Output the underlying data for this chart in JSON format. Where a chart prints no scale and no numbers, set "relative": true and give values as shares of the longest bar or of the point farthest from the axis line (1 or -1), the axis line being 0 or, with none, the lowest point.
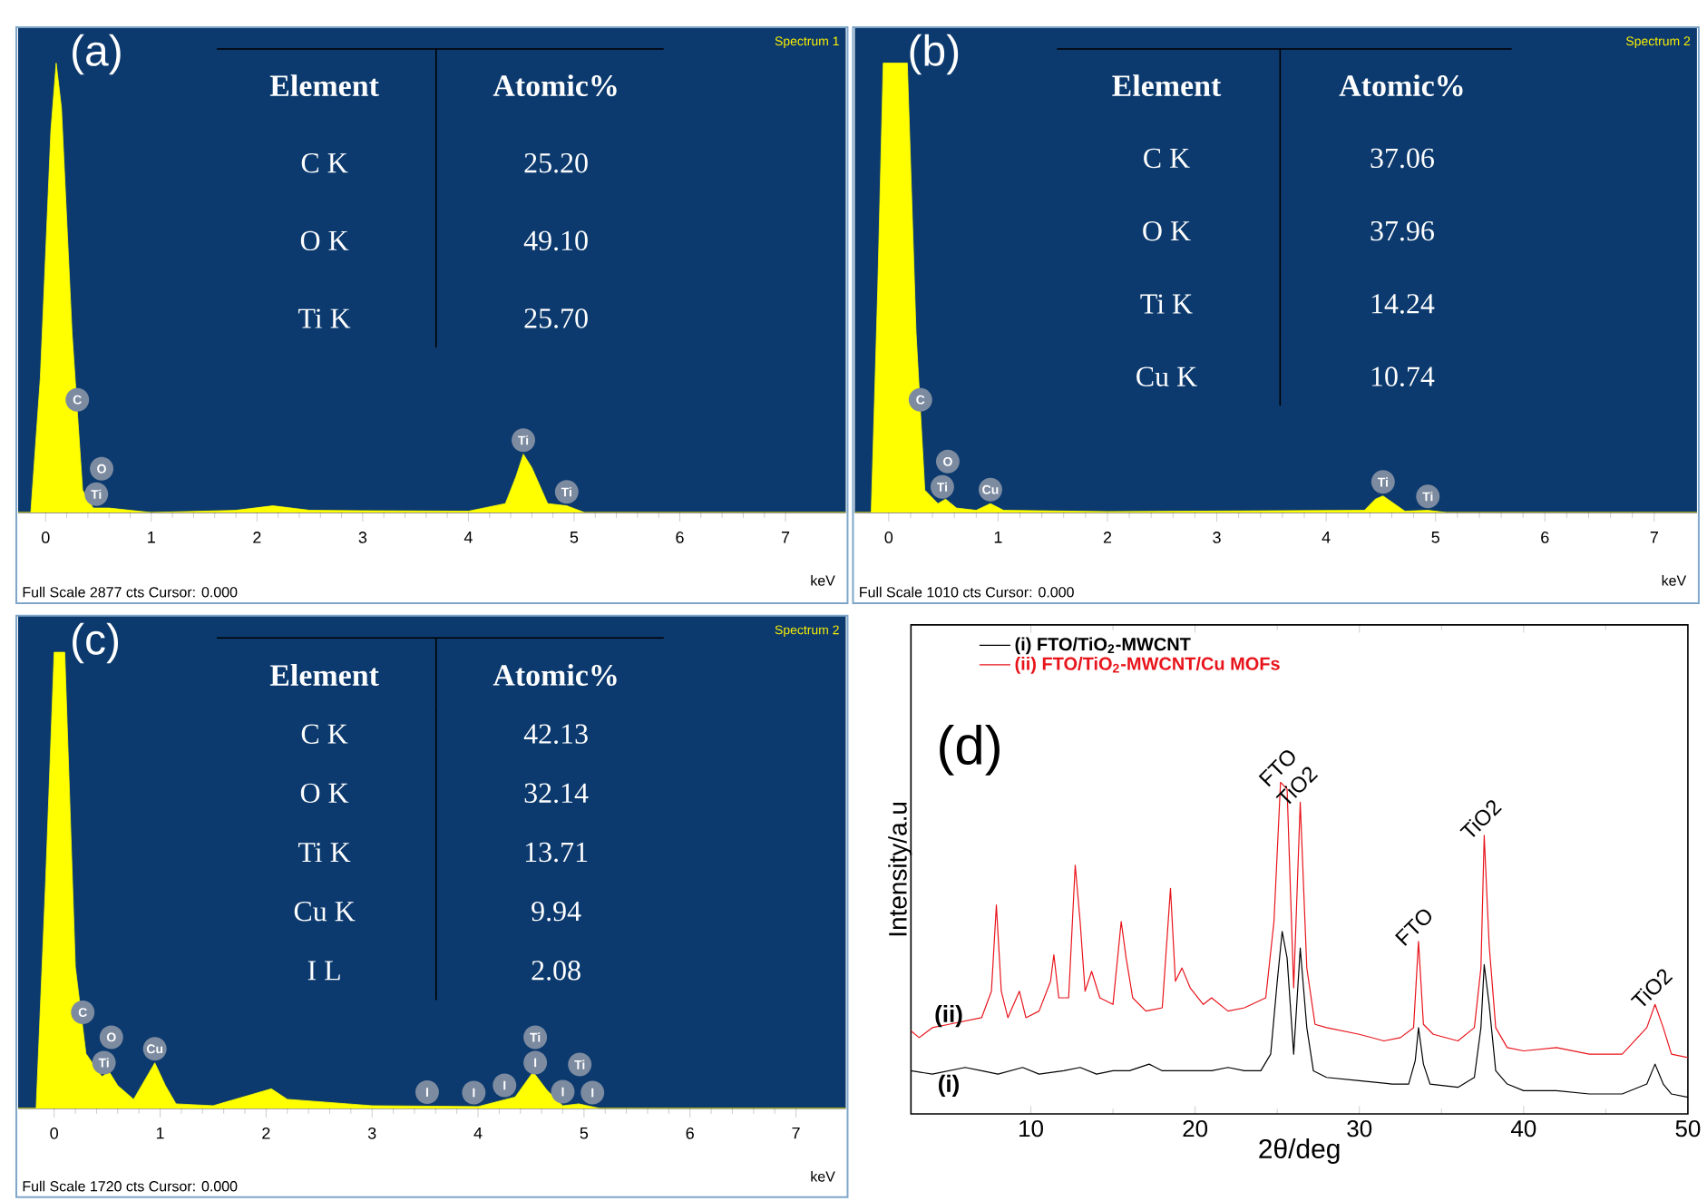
{
  "chart_data": [
    {
      "type": "area",
      "title": "(a)",
      "subtitle": "Spectrum 1",
      "xlabel": "keV",
      "relative": true,
      "tick_labels": "x",
      "xlim": [
        -0.26,
        7.57
      ],
      "xticks": [
        0,
        1,
        2,
        3,
        4,
        5,
        6,
        7
      ],
      "x": [
        -0.26,
        -0.14,
        -0.05,
        0.05,
        0.1,
        0.15,
        0.25,
        0.35,
        0.45,
        0.6,
        1,
        1.8,
        2.15,
        2.5,
        3,
        4,
        4.35,
        4.45,
        4.52,
        4.6,
        4.75,
        4.93,
        5.1,
        7.57
      ],
      "series": [
        {
          "color": "#ffff00",
          "values": [
            0,
            0,
            0.3,
            0.85,
            1.0,
            0.9,
            0.4,
            0.05,
            0.01,
            0.01,
            0,
            0.005,
            0.015,
            0.005,
            0.004,
            0.003,
            0.02,
            0.08,
            0.13,
            0.1,
            0.02,
            0.015,
            0,
            0
          ]
        }
      ],
      "annotations": [
        "Element",
        "Atomic%",
        "C K",
        "25.20",
        "O K",
        "49.10",
        "Ti K",
        "25.70",
        {
          "text": "C",
          "x": 0.3,
          "y": 0.22
        },
        {
          "text": "O",
          "x": 0.53,
          "y": 0.01
        },
        {
          "text": "Ti",
          "x": 0.48,
          "y": 0.01
        },
        {
          "text": "Ti",
          "x": 4.52,
          "y": 0.13
        },
        {
          "text": "Ti",
          "x": 4.93,
          "y": 0.015
        },
        "Full Scale 2877 cts Cursor: 0.000"
      ]
    },
    {
      "type": "area",
      "title": "(b)",
      "subtitle": "Spectrum 2",
      "xlabel": "keV",
      "relative": true,
      "tick_labels": "x",
      "xlim": [
        -0.31,
        7.39
      ],
      "xticks": [
        0,
        1,
        2,
        3,
        4,
        5,
        6,
        7
      ],
      "x": [
        -0.31,
        -0.16,
        -0.1,
        -0.05,
        0.17,
        0.25,
        0.33,
        0.45,
        0.52,
        0.62,
        0.8,
        0.93,
        1.05,
        2,
        4.35,
        4.45,
        4.52,
        4.62,
        4.72,
        4.93,
        5.1,
        7.39
      ],
      "series": [
        {
          "color": "#ffff00",
          "values": [
            0,
            0,
            0.5,
            1.0,
            1.0,
            0.4,
            0.05,
            0.02,
            0.03,
            0.01,
            0.005,
            0.02,
            0.005,
            0.002,
            0.005,
            0.03,
            0.037,
            0.02,
            0.003,
            0.005,
            0,
            0
          ]
        }
      ],
      "annotations": [
        "Element",
        "Atomic%",
        "C K",
        "37.06",
        "O K",
        "37.96",
        "Ti K",
        "14.24",
        "Cu K",
        "10.74",
        {
          "text": "C",
          "x": 0.29,
          "y": 0.22
        },
        {
          "text": "O",
          "x": 0.54,
          "y": 0.026
        },
        {
          "text": "Ti",
          "x": 0.49,
          "y": 0.026
        },
        {
          "text": "Cu",
          "x": 0.93,
          "y": 0.02
        },
        {
          "text": "Ti",
          "x": 4.52,
          "y": 0.037
        },
        {
          "text": "Ti",
          "x": 4.93,
          "y": 0.005
        },
        "Full Scale 1010 cts Cursor: 0.000"
      ]
    },
    {
      "type": "area",
      "title": "(c)",
      "subtitle": "Spectrum 2",
      "xlabel": "keV",
      "relative": true,
      "tick_labels": "x",
      "xlim": [
        -0.34,
        7.47
      ],
      "xticks": [
        0,
        1,
        2,
        3,
        4,
        5,
        6,
        7
      ],
      "x": [
        -0.34,
        -0.17,
        -0.08,
        0.0,
        0.1,
        0.2,
        0.3,
        0.45,
        0.52,
        0.6,
        0.75,
        0.95,
        1.05,
        1.15,
        1.5,
        2.05,
        2.2,
        3,
        4.0,
        4.35,
        4.52,
        4.65,
        4.8,
        4.95,
        5.15,
        7.47
      ],
      "series": [
        {
          "color": "#ffff00",
          "values": [
            0,
            0,
            0.5,
            1.0,
            1.0,
            0.31,
            0.12,
            0.07,
            0.08,
            0.05,
            0.02,
            0.1,
            0.05,
            0.01,
            0.006,
            0.043,
            0.02,
            0.006,
            0.004,
            0.025,
            0.08,
            0.04,
            0.006,
            0.01,
            0,
            0
          ]
        }
      ],
      "annotations": [
        "Element",
        "Atomic%",
        "C K",
        "42.13",
        "O K",
        "32.14",
        "Ti K",
        "13.71",
        "Cu K",
        "9.94",
        "I L",
        "2.08",
        {
          "text": "C",
          "x": 0.27,
          "y": 0.18
        },
        {
          "text": "O",
          "x": 0.54,
          "y": 0.07
        },
        {
          "text": "Ti",
          "x": 0.47,
          "y": 0.07
        },
        {
          "text": "Cu",
          "x": 0.95,
          "y": 0.1
        },
        {
          "text": "I",
          "x": 3.52,
          "y": 0.005
        },
        {
          "text": "I",
          "x": 3.96,
          "y": 0.004
        },
        {
          "text": "I",
          "x": 4.25,
          "y": 0.02
        },
        {
          "text": "Ti",
          "x": 4.54,
          "y": 0.07
        },
        {
          "text": "I",
          "x": 4.54,
          "y": 0.07
        },
        {
          "text": "I",
          "x": 4.8,
          "y": 0.006
        },
        {
          "text": "Ti",
          "x": 4.96,
          "y": 0.01
        },
        {
          "text": "I",
          "x": 5.08,
          "y": 0.004
        },
        "Full Scale 1720 cts Cursor: 0.000"
      ]
    },
    {
      "type": "line",
      "title": "(d)",
      "xlabel": "2θ/deg",
      "ylabel": "Intensity/a.u",
      "relative": true,
      "tick_labels": "x",
      "legend": "top left",
      "xlim": [
        2.7,
        50
      ],
      "xticks": [
        10,
        20,
        30,
        40,
        50
      ],
      "series": [
        {
          "name": "(i) FTO/TiO$_{2}$-MWCNT",
          "color": "#000000",
          "x": [
            2.7,
            4,
            5,
            6,
            7,
            8,
            9.5,
            10.5,
            12,
            13,
            14,
            15,
            16,
            17.2,
            18,
            19,
            20,
            21,
            22,
            23,
            24,
            24.6,
            25.0,
            25.3,
            25.6,
            26.0,
            26.4,
            26.8,
            27.2,
            28,
            30,
            32,
            33.0,
            33.4,
            33.6,
            33.9,
            34.3,
            36,
            37,
            37.4,
            37.6,
            37.9,
            38.3,
            39,
            40,
            42,
            44,
            46,
            47.5,
            48,
            48.5,
            49,
            50
          ],
          "values": [
            0.13,
            0.12,
            0.13,
            0.14,
            0.13,
            0.12,
            0.14,
            0.12,
            0.13,
            0.14,
            0.12,
            0.13,
            0.13,
            0.15,
            0.13,
            0.13,
            0.13,
            0.13,
            0.14,
            0.13,
            0.13,
            0.18,
            0.4,
            0.55,
            0.47,
            0.18,
            0.5,
            0.26,
            0.13,
            0.11,
            0.1,
            0.09,
            0.09,
            0.16,
            0.26,
            0.15,
            0.09,
            0.08,
            0.11,
            0.26,
            0.45,
            0.33,
            0.13,
            0.09,
            0.07,
            0.07,
            0.06,
            0.06,
            0.09,
            0.15,
            0.09,
            0.06,
            0.05
          ]
        },
        {
          "name": "(ii) FTO/TiO$_{2}$-MWCNT/Cu MOFs",
          "color": "#e8141b",
          "x": [
            2.7,
            3.2,
            4,
            5,
            6,
            7,
            7.6,
            7.9,
            8.2,
            8.6,
            9.3,
            9.7,
            10.5,
            11.2,
            11.4,
            11.7,
            12.3,
            12.7,
            13.0,
            13.3,
            13.7,
            14.2,
            15,
            15.5,
            15.8,
            16.2,
            17,
            18,
            18.5,
            18.8,
            19.2,
            19.7,
            20.5,
            21,
            22,
            23,
            24.3,
            24.8,
            25.2,
            25.6,
            26.0,
            26.4,
            26.8,
            27.3,
            28,
            30,
            31.5,
            32.5,
            33.3,
            33.6,
            33.9,
            34.5,
            36,
            37.0,
            37.4,
            37.6,
            37.9,
            38.3,
            39,
            40,
            42,
            44,
            46,
            47.5,
            48,
            48.5,
            49,
            50
          ],
          "values": [
            0.25,
            0.23,
            0.26,
            0.27,
            0.28,
            0.29,
            0.37,
            0.63,
            0.37,
            0.29,
            0.37,
            0.29,
            0.31,
            0.4,
            0.48,
            0.35,
            0.35,
            0.75,
            0.58,
            0.37,
            0.43,
            0.35,
            0.33,
            0.58,
            0.47,
            0.35,
            0.31,
            0.32,
            0.68,
            0.4,
            0.44,
            0.38,
            0.33,
            0.35,
            0.31,
            0.32,
            0.35,
            0.58,
            1.0,
            0.98,
            0.38,
            0.94,
            0.44,
            0.27,
            0.26,
            0.24,
            0.22,
            0.23,
            0.26,
            0.52,
            0.27,
            0.24,
            0.22,
            0.26,
            0.44,
            0.84,
            0.51,
            0.26,
            0.2,
            0.19,
            0.2,
            0.18,
            0.18,
            0.26,
            0.33,
            0.26,
            0.18,
            0.17
          ]
        }
      ],
      "annotations": [
        "(i)",
        "(ii)",
        {
          "text": "FTO",
          "x": 25.3,
          "y": 1.0
        },
        {
          "text": "TiO2",
          "x": 26.4,
          "y": 0.94
        },
        {
          "text": "FTO",
          "x": 33.6,
          "y": 0.52
        },
        {
          "text": "TiO2",
          "x": 37.6,
          "y": 0.84
        },
        {
          "text": "TiO2",
          "x": 48,
          "y": 0.33
        }
      ]
    }
  ]
}
